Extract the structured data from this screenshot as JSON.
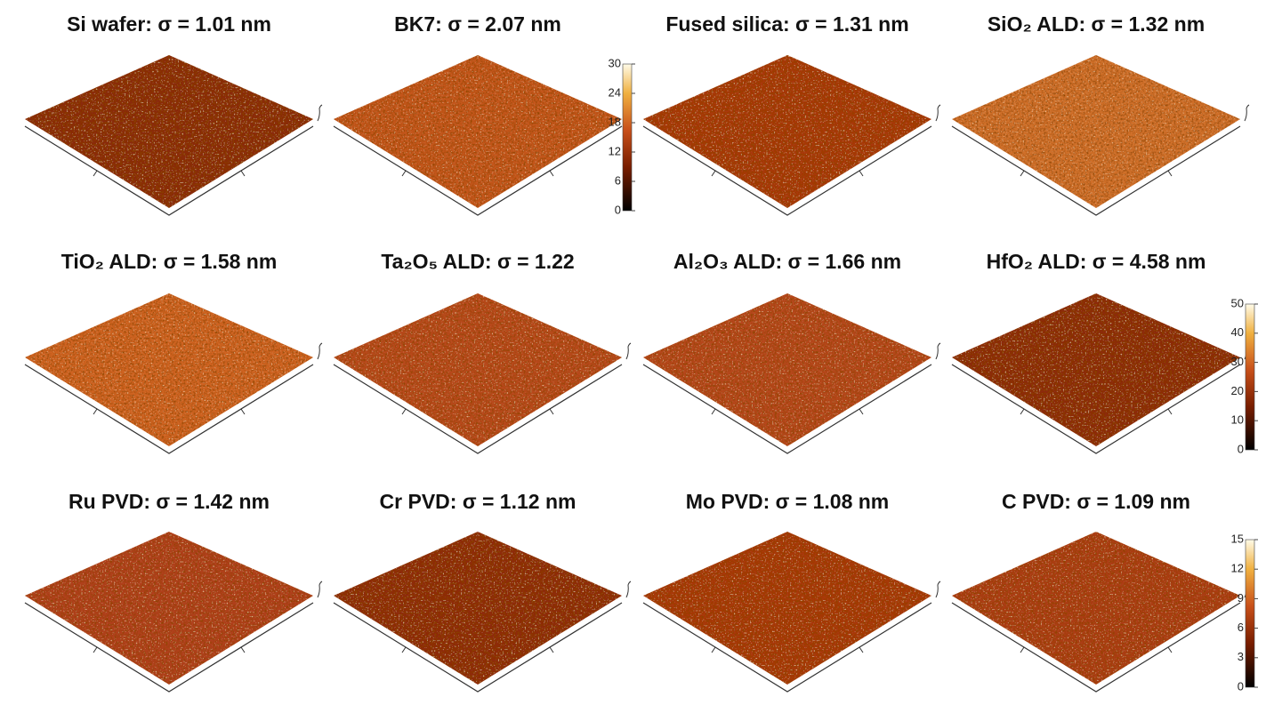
{
  "panels": [
    {
      "title": "Si wafer: σ = 1.01 nm"
    },
    {
      "title": "BK7: σ = 2.07 nm"
    },
    {
      "title": "Fused silica: σ = 1.31 nm"
    },
    {
      "title": "SiO₂ ALD: σ = 1.32 nm"
    },
    {
      "title": "TiO₂ ALD: σ = 1.58 nm"
    },
    {
      "title": "Ta₂O₅ ALD: σ = 1.22"
    },
    {
      "title": "Al₂O₃ ALD: σ = 1.66 nm"
    },
    {
      "title": "HfO₂ ALD: σ = 4.58 nm"
    },
    {
      "title": "Ru PVD: σ = 1.42 nm"
    },
    {
      "title": "Cr PVD: σ = 1.12 nm"
    },
    {
      "title": "Mo PVD: σ = 1.08 nm"
    },
    {
      "title": "C PVD: σ = 1.09 nm"
    }
  ],
  "colorbars": [
    {
      "range": [
        0,
        30
      ],
      "ticks": [
        0,
        6,
        12,
        18,
        24,
        30
      ]
    },
    {
      "range": [
        0,
        50
      ],
      "ticks": [
        0,
        10,
        20,
        30,
        40,
        50
      ]
    },
    {
      "range": [
        0,
        15
      ],
      "ticks": [
        0,
        3,
        6,
        9,
        12,
        15
      ]
    }
  ]
}
